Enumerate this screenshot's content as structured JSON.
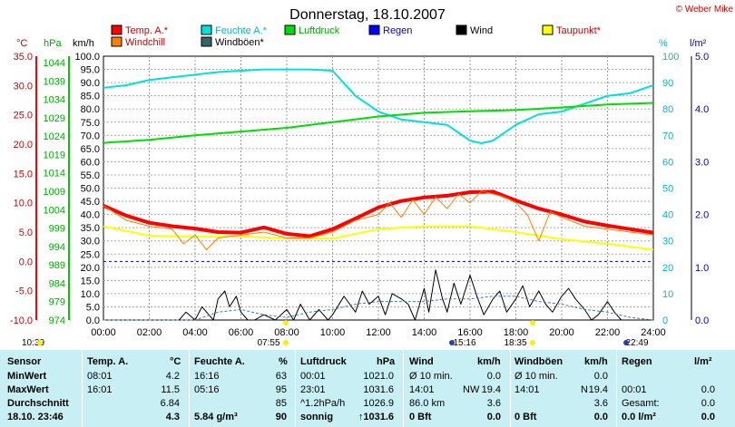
{
  "title": "Donnerstag, 18.10.2007",
  "copyright": "© Weber Mike",
  "chart_data": {
    "type": "line",
    "x_unit": "hours",
    "x_ticks": [
      "00:00",
      "02:00",
      "04:00",
      "06:00",
      "08:00",
      "10:00",
      "12:00",
      "14:00",
      "16:00",
      "18:00",
      "20:00",
      "22:00",
      "24:00"
    ],
    "axes": {
      "temp": {
        "label": "°C",
        "ticks": [
          "35.0",
          "30.0",
          "25.0",
          "20.0",
          "15.0",
          "10.0",
          "5.0",
          "0.0",
          "-5.0",
          "-10.0"
        ],
        "min": -10,
        "max": 35,
        "color": "#ff0000"
      },
      "press": {
        "label": "hPa",
        "ticks": [
          "1044",
          "1039",
          "1034",
          "1029",
          "1024",
          "1019",
          "1014",
          "1009",
          "1004",
          "999",
          "994",
          "989",
          "984",
          "979",
          "974"
        ],
        "min": 974,
        "max": 1044,
        "color": "#00cc00"
      },
      "wind": {
        "label": "km/h",
        "ticks": [
          "100.0",
          "95.0",
          "90.0",
          "85.0",
          "80.0",
          "75.0",
          "70.0",
          "65.0",
          "60.0",
          "55.0",
          "50.0",
          "45.0",
          "40.0",
          "35.0",
          "30.0",
          "25.0",
          "20.0",
          "15.0",
          "10.0",
          "5.0",
          "0.0"
        ],
        "min": 0,
        "max": 100,
        "color": "#000000"
      },
      "hum": {
        "label": "%",
        "ticks": [
          "100",
          "90",
          "80",
          "70",
          "60",
          "50",
          "40",
          "30",
          "20",
          "10",
          "0"
        ],
        "min": 0,
        "max": 100,
        "color": "#00cccc"
      },
      "rain": {
        "label": "l/m²",
        "ticks": [
          "5.0",
          "4.0",
          "3.0",
          "2.0",
          "1.0",
          "0.0"
        ],
        "min": 0,
        "max": 5,
        "color": "#0000ff"
      }
    },
    "legend": [
      {
        "name": "Temp. A.*",
        "color": "#ff0000"
      },
      {
        "name": "Feuchte A.*",
        "color": "#00e0e0"
      },
      {
        "name": "Luftdruck",
        "color": "#00dd00"
      },
      {
        "name": "Regen",
        "color": "#0000ff"
      },
      {
        "name": "Wind",
        "color": "#000000"
      },
      {
        "name": "Taupunkt*",
        "color": "#ffff00"
      },
      {
        "name": "Windchill",
        "color": "#ff8000"
      },
      {
        "name": "Windböen*",
        "color": "#336666"
      }
    ],
    "series": [
      {
        "name": "Temp. A.*",
        "axis": "temp",
        "color": "#ff0000",
        "width": 4,
        "x": [
          0,
          1,
          2,
          3,
          4,
          5,
          6,
          7,
          8,
          9,
          10,
          11,
          12,
          13,
          14,
          15,
          16,
          17,
          18,
          19,
          20,
          21,
          22,
          23,
          24
        ],
        "y": [
          9.5,
          7.8,
          6.6,
          6.0,
          5.6,
          5.0,
          4.9,
          5.8,
          4.7,
          4.3,
          5.5,
          7.3,
          9.2,
          10.3,
          10.9,
          11.2,
          11.8,
          11.9,
          10.4,
          9.0,
          8.0,
          6.8,
          6.1,
          5.5,
          4.9
        ]
      },
      {
        "name": "Feuchte A.*",
        "axis": "hum",
        "color": "#00e0e0",
        "width": 2,
        "x": [
          0,
          1,
          2,
          3,
          4,
          5,
          6,
          7,
          8,
          9,
          10,
          11,
          12,
          13,
          14,
          15,
          16,
          16.5,
          17,
          18,
          19,
          20,
          21,
          22,
          23,
          24
        ],
        "y": [
          88,
          89,
          91,
          92,
          93,
          94,
          94.5,
          95,
          95,
          95,
          94.5,
          85,
          79,
          76,
          75,
          74,
          68,
          67,
          68,
          74,
          78,
          79,
          82,
          85,
          86,
          89
        ]
      },
      {
        "name": "Luftdruck",
        "axis": "press",
        "color": "#00dd00",
        "width": 2,
        "x": [
          0,
          2,
          4,
          6,
          8,
          10,
          12,
          14,
          16,
          18,
          20,
          22,
          24
        ],
        "y": [
          1021.0,
          1021.8,
          1023.0,
          1024.0,
          1025.0,
          1026.5,
          1028.0,
          1029.0,
          1029.4,
          1029.7,
          1030.4,
          1031.2,
          1031.6
        ]
      },
      {
        "name": "Taupunkt*",
        "axis": "temp",
        "color": "#ffff00",
        "width": 2,
        "x": [
          0,
          2,
          4,
          6,
          8,
          10,
          12,
          14,
          16,
          18,
          20,
          22,
          24
        ],
        "y": [
          6.0,
          4.4,
          4.2,
          4.3,
          3.9,
          3.9,
          5.5,
          6.0,
          6.0,
          5.0,
          3.8,
          3.0,
          2.0
        ]
      },
      {
        "name": "Windchill",
        "axis": "temp",
        "color": "#ff8000",
        "width": 1,
        "x": [
          0,
          1,
          2,
          3,
          3.5,
          4,
          4.5,
          5,
          6,
          7,
          8,
          9,
          10,
          11,
          12,
          12.5,
          13,
          13.5,
          14,
          14.5,
          15,
          15.5,
          16,
          16.5,
          17,
          17.5,
          18,
          18.5,
          19,
          19.5,
          20,
          21,
          22,
          23,
          24
        ],
        "y": [
          9.5,
          7.0,
          6.0,
          5.5,
          3.0,
          4.5,
          2.0,
          4.0,
          4.5,
          5.0,
          4.0,
          4.0,
          5.0,
          7.0,
          8.0,
          10.0,
          7.5,
          10.5,
          8.0,
          11.0,
          9.0,
          11.5,
          10.0,
          12.0,
          11.5,
          11.0,
          10.0,
          8.0,
          3.5,
          8.5,
          7.5,
          6.0,
          5.5,
          5.0,
          4.5
        ]
      },
      {
        "name": "Wind",
        "axis": "wind",
        "color": "#000000",
        "width": 1,
        "x": [
          0,
          3,
          3.3,
          3.6,
          4.0,
          4.3,
          4.8,
          5.0,
          5.3,
          5.5,
          5.8,
          6.0,
          6.3,
          6.6,
          7.0,
          7.5,
          8.0,
          8.3,
          8.6,
          9.0,
          9.4,
          9.8,
          10.0,
          10.5,
          11.0,
          11.3,
          11.6,
          12.0,
          12.3,
          12.6,
          13.0,
          13.3,
          13.6,
          14.0,
          14.2,
          14.5,
          14.8,
          15.0,
          15.3,
          15.6,
          16.0,
          16.3,
          16.6,
          17.0,
          17.3,
          17.6,
          18.0,
          18.3,
          18.6,
          19.0,
          19.3,
          19.6,
          20.0,
          20.3,
          20.6,
          21.0,
          21.3,
          21.6,
          22.0,
          22.3,
          22.6,
          23.0,
          23.3,
          23.6,
          24.0
        ],
        "y": [
          0,
          0,
          0,
          3,
          0,
          5,
          0,
          8,
          11,
          5,
          9,
          3,
          0,
          0,
          2,
          0,
          4,
          0,
          6,
          0,
          4,
          0,
          2,
          9,
          3,
          11,
          6,
          9,
          2,
          10,
          8,
          6,
          0,
          12,
          3,
          19,
          8,
          3,
          14,
          6,
          17,
          9,
          2,
          8,
          11,
          3,
          8,
          13,
          5,
          11,
          6,
          3,
          9,
          12,
          8,
          4,
          0,
          2,
          7,
          3,
          0,
          0,
          0,
          0,
          0
        ]
      },
      {
        "name": "Windböen*",
        "axis": "wind",
        "color": "#4477aa",
        "width": 1,
        "dash": "3,2",
        "x": [
          0,
          2,
          4,
          5,
          6,
          7,
          8,
          9,
          10,
          11,
          12,
          13,
          14,
          15,
          16,
          17,
          18,
          19,
          20,
          21,
          22,
          23,
          24
        ],
        "y": [
          0,
          0,
          0,
          3,
          4,
          2,
          1,
          3,
          4,
          6,
          7,
          7,
          7,
          8,
          8,
          9,
          9,
          7,
          6,
          4,
          3,
          1,
          0
        ]
      }
    ],
    "ref_lines": [
      {
        "axis": "temp",
        "value": 0,
        "color": "#0000cc",
        "dash": "3,3"
      }
    ],
    "bottom_labels": [
      "10:39",
      "07:55",
      "15:16",
      "18:35",
      "22:49"
    ]
  },
  "table": {
    "headers": {
      "sensor": "Sensor",
      "temp": "Temp. A.",
      "temp_unit": "°C",
      "hum": "Feuchte A.",
      "hum_unit": "%",
      "press": "Luftdruck",
      "press_unit": "hPa",
      "wind": "Wind",
      "wind_unit": "km/h",
      "gust": "Windböen",
      "gust_unit": "km/h",
      "rain": "Regen",
      "rain_unit": "l/m²"
    },
    "rows": [
      {
        "label": "MinWert",
        "t_time": "08:01",
        "t_val": "4.2",
        "h_time": "16:16",
        "h_val": "63",
        "p_time": "00:01",
        "p_val": "1021.0",
        "w_time": "Ø 10 min.",
        "w_dir": "",
        "w_val": "0.0",
        "g_time": "Ø 10 min.",
        "g_dir": "",
        "g_val": "0.0",
        "r_time": "",
        "r_val": ""
      },
      {
        "label": "MaxWert",
        "t_time": "16:01",
        "t_val": "11.5",
        "h_time": "05:16",
        "h_val": "95",
        "p_time": "23:01",
        "p_val": "1031.6",
        "w_time": "14:01",
        "w_dir": "NW",
        "w_val": "19.4",
        "g_time": "14:01",
        "g_dir": "N",
        "g_val": "19.4",
        "r_time": "00:01",
        "r_val": "0.0"
      },
      {
        "label": "Durchschnitt",
        "t_time": "",
        "t_val": "6.84",
        "h_time": "",
        "h_val": "85",
        "p_time": "^1.2hPa/h",
        "p_val": "1026.9",
        "w_time": "86.0 km",
        "w_dir": "",
        "w_val": "3.6",
        "g_time": "",
        "g_dir": "",
        "g_val": "3.6",
        "r_time": "Gesamt:",
        "r_val": "0.0"
      },
      {
        "label": "18.10. 23:46",
        "t_time": "",
        "t_val": "4.3",
        "h_time": "5.84 g/m³",
        "h_val": "90",
        "p_time": "sonnig",
        "p_val": "↑1031.6",
        "w_time": "0 Bft",
        "w_dir": "",
        "w_val": "0.0",
        "g_time": "0 Bft",
        "g_dir": "",
        "g_val": "0.0",
        "r_time": "0.0 l/m²",
        "r_val": "0.0"
      }
    ]
  }
}
